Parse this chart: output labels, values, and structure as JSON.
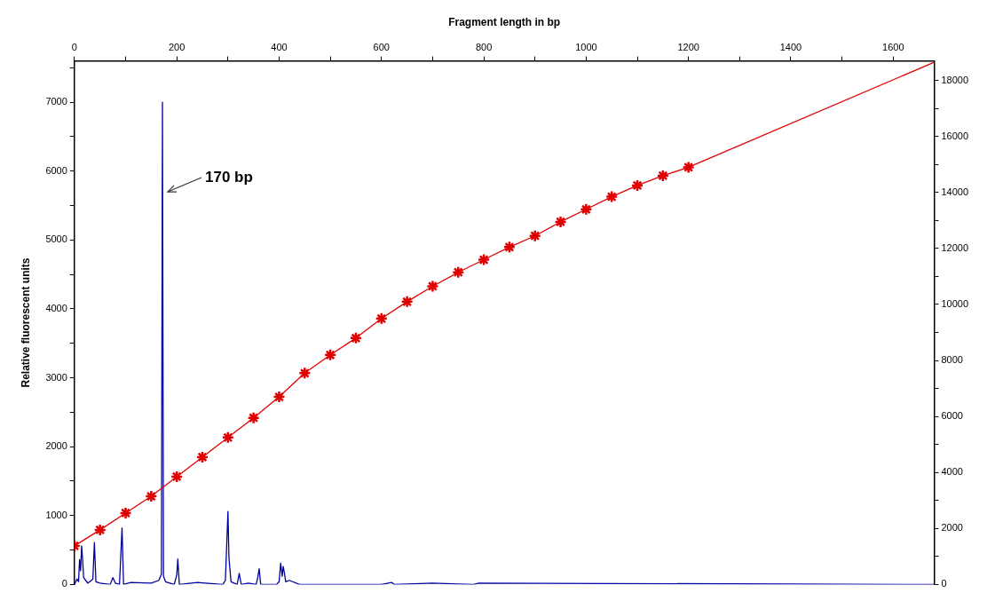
{
  "chart_data": {
    "type": "line",
    "xlabel": "Fragment length in bp",
    "ylabel": "Relative fluorescent units",
    "xlim": [
      0,
      1680
    ],
    "ylim": [
      0,
      7600
    ],
    "y2lim": [
      0,
      18700
    ],
    "xticks": [
      0,
      {
        "value": 100,
        "label": null
      },
      200,
      {
        "value": 300,
        "label": null
      },
      400,
      {
        "value": 500,
        "label": null
      },
      600,
      {
        "value": 700,
        "label": null
      },
      800,
      {
        "value": 900,
        "label": null
      },
      1000,
      {
        "value": 1100,
        "label": null
      },
      1200,
      {
        "value": 1300,
        "label": null
      },
      1400,
      {
        "value": 1500,
        "label": null
      },
      1600
    ],
    "yticks": [
      0,
      {
        "value": 500,
        "label": null
      },
      1000,
      {
        "value": 1500,
        "label": null
      },
      2000,
      {
        "value": 2500,
        "label": null
      },
      3000,
      {
        "value": 3500,
        "label": null
      },
      4000,
      {
        "value": 4500,
        "label": null
      },
      5000,
      {
        "value": 5500,
        "label": null
      },
      6000,
      {
        "value": 6500,
        "label": null
      },
      7000,
      {
        "value": 7500,
        "label": null
      }
    ],
    "y2ticks": [
      0,
      {
        "value": 1000,
        "label": null
      },
      2000,
      {
        "value": 3000,
        "label": null
      },
      4000,
      {
        "value": 5000,
        "label": null
      },
      6000,
      {
        "value": 7000,
        "label": null
      },
      8000,
      {
        "value": 9000,
        "label": null
      },
      10000,
      {
        "value": 11000,
        "label": null
      },
      12000,
      {
        "value": 13000,
        "label": null
      },
      14000,
      {
        "value": 15000,
        "label": null
      },
      16000,
      {
        "value": 17000,
        "label": null
      },
      18000
    ],
    "grid": false,
    "series": [
      {
        "type": "line",
        "axis": "y",
        "color": "#0000a0",
        "marker": "none",
        "x": [
          0,
          5,
          8,
          10,
          12,
          14,
          16,
          18,
          22,
          26,
          30,
          36,
          39,
          42,
          50,
          70,
          75,
          80,
          88,
          93,
          96,
          110,
          150,
          165,
          170,
          172,
          174,
          178,
          195,
          200,
          202,
          205,
          240,
          290,
          295,
          300,
          302,
          306,
          318,
          322,
          326,
          340,
          355,
          358,
          361,
          364,
          395,
          400,
          403,
          406,
          408,
          410,
          413,
          420,
          440,
          600,
          620,
          625,
          700,
          780,
          790,
          1680
        ],
        "values": [
          0,
          80,
          40,
          360,
          200,
          560,
          360,
          100,
          60,
          20,
          40,
          80,
          610,
          40,
          20,
          0,
          100,
          20,
          0,
          820,
          0,
          30,
          20,
          60,
          150,
          7000,
          120,
          40,
          0,
          140,
          370,
          0,
          30,
          0,
          60,
          1060,
          380,
          40,
          0,
          160,
          0,
          20,
          0,
          90,
          230,
          0,
          0,
          40,
          310,
          120,
          260,
          180,
          40,
          60,
          0,
          0,
          30,
          0,
          20,
          0,
          20,
          0
        ]
      },
      {
        "type": "line",
        "axis": "y2",
        "color": "#e00000",
        "marker": "cross",
        "x": [
          0,
          50,
          100,
          150,
          200,
          250,
          300,
          350,
          400,
          450,
          500,
          550,
          600,
          650,
          700,
          750,
          800,
          850,
          900,
          950,
          1000,
          1050,
          1100,
          1150,
          1200
        ],
        "values": [
          1380,
          1950,
          2550,
          3150,
          3850,
          4550,
          5250,
          5950,
          6700,
          7550,
          8200,
          8800,
          9500,
          10100,
          10650,
          11150,
          11600,
          12050,
          12450,
          12950,
          13400,
          13850,
          14250,
          14600,
          14900
        ]
      },
      {
        "type": "line",
        "axis": "y2",
        "color": "#e00000",
        "marker": "none",
        "x": [
          1200,
          1680
        ],
        "values": [
          14900,
          18650
        ]
      }
    ],
    "annotations": [
      {
        "text": "170 bp",
        "x": 172,
        "y": 5700
      }
    ]
  }
}
